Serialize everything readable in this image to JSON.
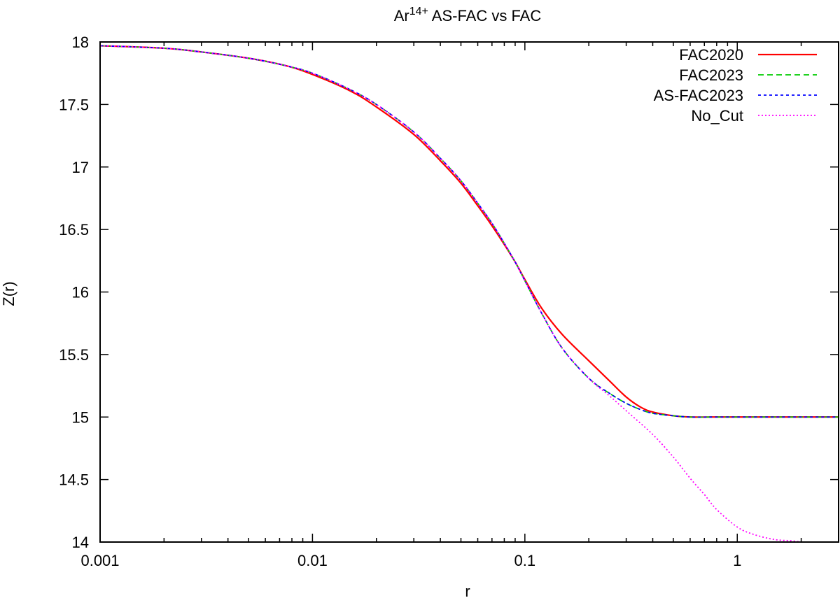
{
  "chart_data": {
    "type": "line",
    "title": {
      "prefix": "Ar",
      "superscript": "14+",
      "suffix": " AS-FAC vs FAC"
    },
    "xlabel": "r",
    "ylabel": "Z(r)",
    "xscale": "log",
    "xlim": [
      0.001,
      3
    ],
    "ylim": [
      14,
      18
    ],
    "x_tick_labels": [
      "0.001",
      "0.01",
      "0.1",
      "1"
    ],
    "y_tick_labels": [
      "14",
      "14.5",
      "15",
      "15.5",
      "16",
      "16.5",
      "17",
      "17.5",
      "18"
    ],
    "grid": false,
    "legend_position": "top-right",
    "series": [
      {
        "name": "FAC2020",
        "color": "#ff0000",
        "dash": "solid",
        "x": [
          0.001,
          0.002,
          0.003,
          0.005,
          0.0075,
          0.01,
          0.015,
          0.02,
          0.03,
          0.04,
          0.05,
          0.06,
          0.07,
          0.08,
          0.09,
          0.1,
          0.12,
          0.15,
          0.2,
          0.25,
          0.3,
          0.35,
          0.4,
          0.5,
          0.6,
          0.8,
          1.0,
          1.5,
          2.0,
          3.0
        ],
        "y": [
          17.97,
          17.95,
          17.92,
          17.87,
          17.81,
          17.74,
          17.61,
          17.48,
          17.26,
          17.05,
          16.87,
          16.69,
          16.53,
          16.38,
          16.24,
          16.1,
          15.87,
          15.66,
          15.45,
          15.29,
          15.16,
          15.08,
          15.04,
          15.01,
          15.0,
          15.0,
          15.0,
          15.0,
          15.0,
          15.0
        ]
      },
      {
        "name": "FAC2023",
        "color": "#00cc00",
        "dash": "8,5",
        "x": [
          0.001,
          0.002,
          0.003,
          0.005,
          0.0075,
          0.01,
          0.015,
          0.02,
          0.03,
          0.04,
          0.05,
          0.06,
          0.07,
          0.08,
          0.09,
          0.1,
          0.12,
          0.15,
          0.2,
          0.25,
          0.3,
          0.35,
          0.4,
          0.5,
          0.6,
          0.8,
          1.0,
          1.5,
          2.0,
          3.0
        ],
        "y": [
          17.97,
          17.95,
          17.92,
          17.87,
          17.81,
          17.75,
          17.62,
          17.5,
          17.28,
          17.07,
          16.89,
          16.71,
          16.55,
          16.39,
          16.24,
          16.09,
          15.83,
          15.55,
          15.31,
          15.19,
          15.11,
          15.06,
          15.03,
          15.01,
          15.0,
          15.0,
          15.0,
          15.0,
          15.0,
          15.0
        ]
      },
      {
        "name": "AS-FAC2023",
        "color": "#0000ff",
        "dash": "4,4",
        "x": [
          0.001,
          0.002,
          0.003,
          0.005,
          0.0075,
          0.01,
          0.015,
          0.02,
          0.03,
          0.04,
          0.05,
          0.06,
          0.07,
          0.08,
          0.09,
          0.1,
          0.12,
          0.15,
          0.2,
          0.25,
          0.3,
          0.35,
          0.4,
          0.5,
          0.6,
          0.8,
          1.0,
          1.5,
          2.0,
          3.0
        ],
        "y": [
          17.97,
          17.95,
          17.92,
          17.87,
          17.81,
          17.75,
          17.62,
          17.5,
          17.28,
          17.07,
          16.89,
          16.71,
          16.55,
          16.39,
          16.24,
          16.09,
          15.83,
          15.55,
          15.31,
          15.19,
          15.11,
          15.06,
          15.03,
          15.01,
          15.0,
          15.0,
          15.0,
          15.0,
          15.0,
          15.0
        ]
      },
      {
        "name": "No_Cut",
        "color": "#ff00ff",
        "dash": "2,3",
        "x": [
          0.001,
          0.002,
          0.003,
          0.005,
          0.0075,
          0.01,
          0.015,
          0.02,
          0.03,
          0.04,
          0.05,
          0.06,
          0.07,
          0.08,
          0.09,
          0.1,
          0.12,
          0.15,
          0.2,
          0.25,
          0.3,
          0.4,
          0.5,
          0.6,
          0.7,
          0.8,
          1.0,
          1.2,
          1.5,
          1.8,
          2.0
        ],
        "y": [
          17.97,
          17.95,
          17.92,
          17.87,
          17.81,
          17.75,
          17.62,
          17.5,
          17.28,
          17.07,
          16.89,
          16.71,
          16.55,
          16.39,
          16.24,
          16.09,
          15.83,
          15.55,
          15.31,
          15.17,
          15.05,
          14.86,
          14.68,
          14.51,
          14.38,
          14.26,
          14.12,
          14.06,
          14.02,
          14.01,
          14.0
        ]
      }
    ]
  }
}
